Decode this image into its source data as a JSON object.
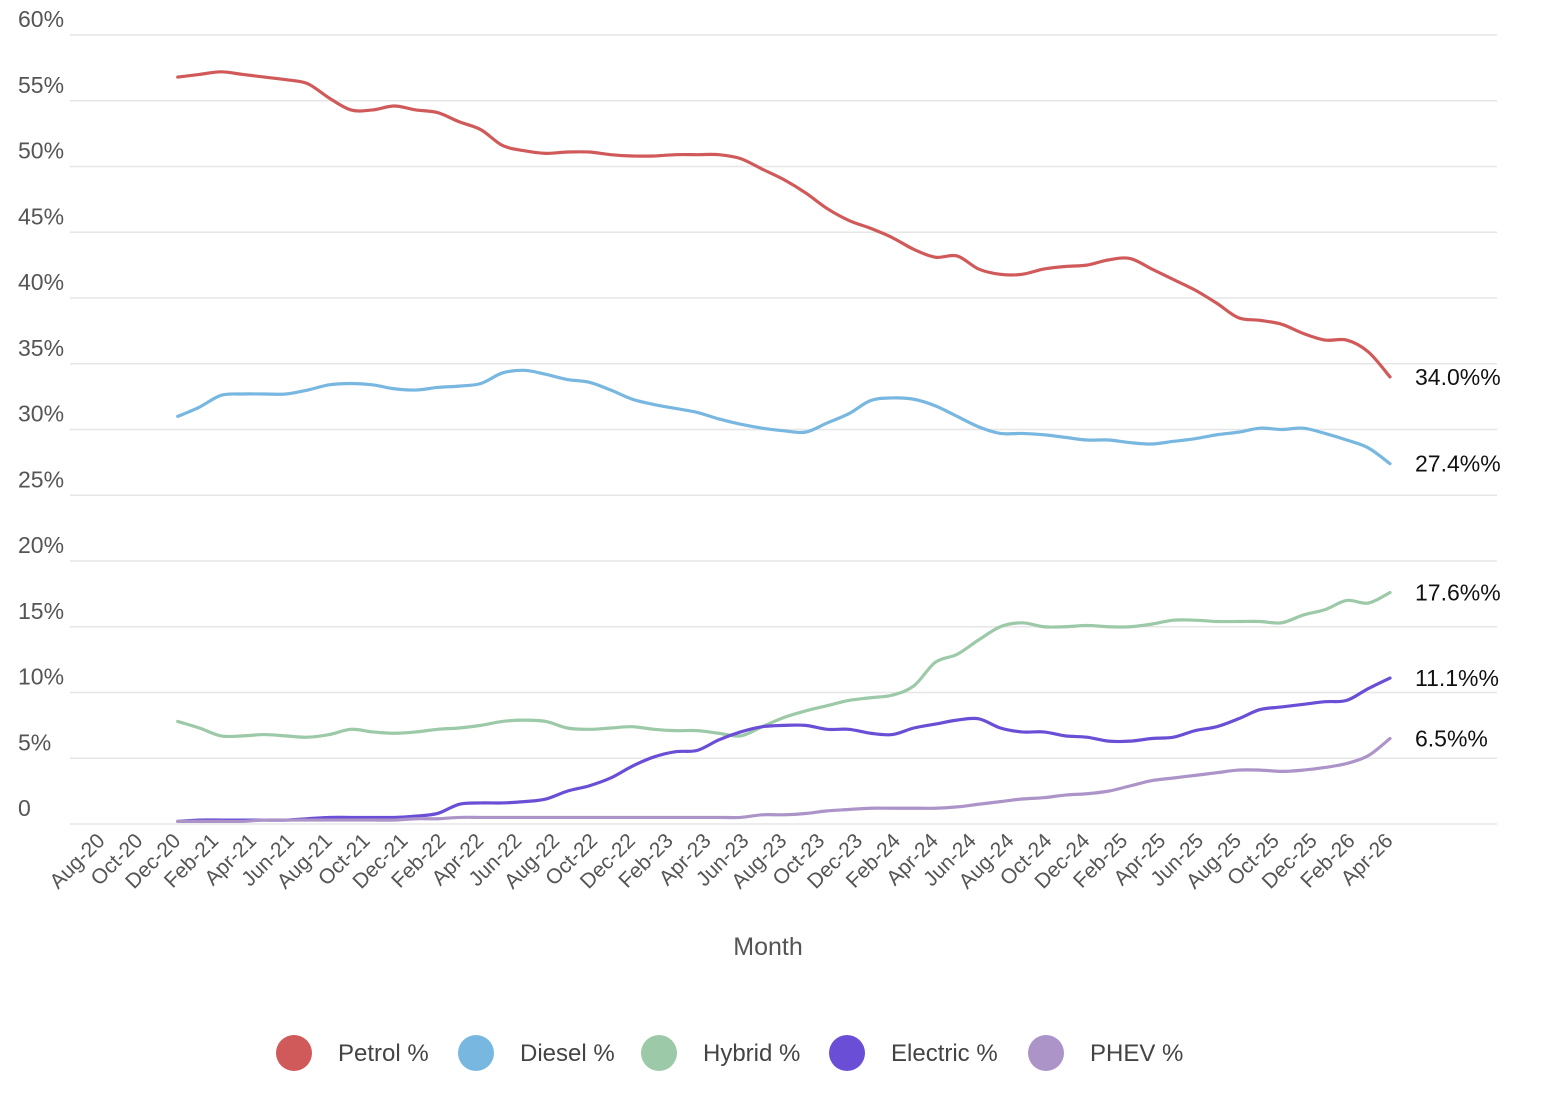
{
  "chart_data": {
    "type": "line",
    "title": "",
    "xlabel": "Month",
    "ylabel": "",
    "ylim": [
      0,
      60
    ],
    "y_ticks": [
      {
        "value": 0,
        "label": "0"
      },
      {
        "value": 5,
        "label": "5%"
      },
      {
        "value": 10,
        "label": "10%"
      },
      {
        "value": 15,
        "label": "15%"
      },
      {
        "value": 20,
        "label": "20%"
      },
      {
        "value": 25,
        "label": "25%"
      },
      {
        "value": 30,
        "label": "30%"
      },
      {
        "value": 35,
        "label": "35%"
      },
      {
        "value": 40,
        "label": "40%"
      },
      {
        "value": 45,
        "label": "45%"
      },
      {
        "value": 50,
        "label": "50%"
      },
      {
        "value": 55,
        "label": "55%"
      },
      {
        "value": 60,
        "label": "60%"
      }
    ],
    "grid": true,
    "legend_position": "bottom",
    "x_tick_labels": [
      "Aug-20",
      "Oct-20",
      "Dec-20",
      "Feb-21",
      "Apr-21",
      "Jun-21",
      "Aug-21",
      "Oct-21",
      "Dec-21",
      "Feb-22",
      "Apr-22",
      "Jun-22",
      "Aug-22",
      "Oct-22",
      "Dec-22",
      "Feb-23",
      "Apr-23",
      "Jun-23",
      "Aug-23",
      "Oct-23",
      "Dec-23",
      "Feb-24",
      "Apr-24",
      "Jun-24",
      "Aug-24",
      "Oct-24",
      "Dec-24",
      "Feb-25",
      "Apr-25",
      "Jun-25",
      "Aug-25",
      "Oct-25",
      "Dec-25",
      "Feb-26",
      "Apr-26"
    ],
    "x_start": "Aug-20",
    "x_end": "Apr-26",
    "series_start": "Dec-20",
    "series": [
      {
        "name": "Petrol %",
        "color": "#d05a5a",
        "end_label": "34.0%%",
        "values": [
          56.8,
          57.0,
          57.2,
          57.0,
          56.8,
          56.6,
          56.3,
          55.2,
          54.3,
          54.3,
          54.6,
          54.3,
          54.1,
          53.4,
          52.8,
          51.6,
          51.2,
          51.0,
          51.1,
          51.1,
          50.9,
          50.8,
          50.8,
          50.9,
          50.9,
          50.9,
          50.6,
          49.8,
          49.0,
          48.0,
          46.8,
          45.9,
          45.3,
          44.6,
          43.7,
          43.1,
          43.2,
          42.2,
          41.8,
          41.8,
          42.2,
          42.4,
          42.5,
          42.9,
          43.0,
          42.2,
          41.4,
          40.6,
          39.6,
          38.5,
          38.3,
          38.0,
          37.3,
          36.8,
          36.8,
          35.9,
          34.0
        ]
      },
      {
        "name": "Diesel %",
        "color": "#78b7e0",
        "end_label": "27.4%%",
        "values": [
          31.0,
          31.7,
          32.6,
          32.7,
          32.7,
          32.7,
          33.0,
          33.4,
          33.5,
          33.4,
          33.1,
          33.0,
          33.2,
          33.3,
          33.5,
          34.3,
          34.5,
          34.2,
          33.8,
          33.6,
          33.0,
          32.3,
          31.9,
          31.6,
          31.3,
          30.8,
          30.4,
          30.1,
          29.9,
          29.8,
          30.5,
          31.2,
          32.2,
          32.4,
          32.3,
          31.8,
          31.0,
          30.2,
          29.7,
          29.7,
          29.6,
          29.4,
          29.2,
          29.2,
          29.0,
          28.9,
          29.1,
          29.3,
          29.6,
          29.8,
          30.1,
          30.0,
          30.1,
          29.7,
          29.2,
          28.6,
          27.4
        ]
      },
      {
        "name": "Hybrid %",
        "color": "#9cc9a7",
        "end_label": "17.6%%",
        "values": [
          7.8,
          7.3,
          6.7,
          6.7,
          6.8,
          6.7,
          6.6,
          6.8,
          7.2,
          7.0,
          6.9,
          7.0,
          7.2,
          7.3,
          7.5,
          7.8,
          7.9,
          7.8,
          7.3,
          7.2,
          7.3,
          7.4,
          7.2,
          7.1,
          7.1,
          6.9,
          6.7,
          7.4,
          8.1,
          8.6,
          9.0,
          9.4,
          9.6,
          9.8,
          10.5,
          12.3,
          12.9,
          14.0,
          15.0,
          15.3,
          15.0,
          15.0,
          15.1,
          15.0,
          15.0,
          15.2,
          15.5,
          15.5,
          15.4,
          15.4,
          15.4,
          15.3,
          15.9,
          16.3,
          17.0,
          16.8,
          17.6
        ]
      },
      {
        "name": "Electric %",
        "color": "#6a4fd6",
        "end_label": "11.1%%",
        "values": [
          0.2,
          0.3,
          0.3,
          0.3,
          0.3,
          0.3,
          0.4,
          0.5,
          0.5,
          0.5,
          0.5,
          0.6,
          0.8,
          1.5,
          1.6,
          1.6,
          1.7,
          1.9,
          2.5,
          2.9,
          3.5,
          4.4,
          5.1,
          5.5,
          5.6,
          6.4,
          7.0,
          7.4,
          7.5,
          7.5,
          7.2,
          7.2,
          6.9,
          6.8,
          7.3,
          7.6,
          7.9,
          8.0,
          7.3,
          7.0,
          7.0,
          6.7,
          6.6,
          6.3,
          6.3,
          6.5,
          6.6,
          7.1,
          7.4,
          8.0,
          8.7,
          8.9,
          9.1,
          9.3,
          9.4,
          10.3,
          11.1
        ]
      },
      {
        "name": "PHEV %",
        "color": "#ac94c8",
        "end_label": "6.5%%",
        "values": [
          0.2,
          0.2,
          0.2,
          0.2,
          0.3,
          0.3,
          0.3,
          0.3,
          0.3,
          0.3,
          0.3,
          0.4,
          0.4,
          0.5,
          0.5,
          0.5,
          0.5,
          0.5,
          0.5,
          0.5,
          0.5,
          0.5,
          0.5,
          0.5,
          0.5,
          0.5,
          0.5,
          0.7,
          0.7,
          0.8,
          1.0,
          1.1,
          1.2,
          1.2,
          1.2,
          1.2,
          1.3,
          1.5,
          1.7,
          1.9,
          2.0,
          2.2,
          2.3,
          2.5,
          2.9,
          3.3,
          3.5,
          3.7,
          3.9,
          4.1,
          4.1,
          4.0,
          4.1,
          4.3,
          4.6,
          5.2,
          6.5
        ]
      }
    ]
  }
}
